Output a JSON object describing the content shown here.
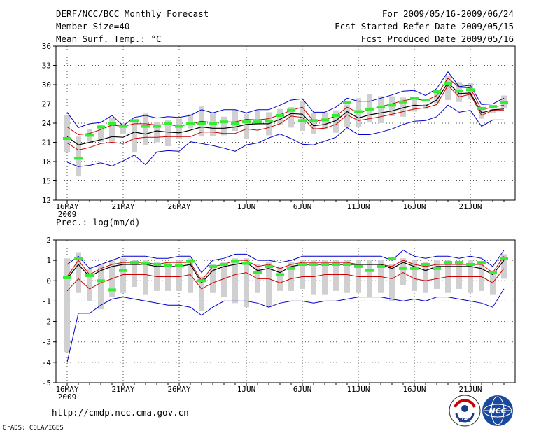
{
  "header": {
    "title": "DERF/NCC/BCC Monthly Forecast",
    "member_size": "Member Size=40",
    "var1": "Mean Surf. Temp.: °C",
    "period": "For 2009/05/16-2009/06/24",
    "started": "Fcst Started Refer Date 2009/05/15",
    "produced": "Fcst Produced Date 2009/05/16"
  },
  "panel2_label": "Prec.: log(mm/d)",
  "footer": {
    "url": "http://cmdp.ncc.cma.gov.cn",
    "grads": "GrADS: COLA/IGES",
    "logo1": "BCC",
    "logo2": "NCC"
  },
  "x_labels": [
    {
      "day": 0,
      "label": "16MAY",
      "sub": "2009"
    },
    {
      "day": 5,
      "label": "21MAY"
    },
    {
      "day": 10,
      "label": "26MAY"
    },
    {
      "day": 16,
      "label": "1JUN"
    },
    {
      "day": 21,
      "label": "6JUN"
    },
    {
      "day": 26,
      "label": "11JUN"
    },
    {
      "day": 31,
      "label": "16JUN"
    },
    {
      "day": 36,
      "label": "21JUN"
    }
  ],
  "colors": {
    "max_min": "#0000cc",
    "spread": "#cc0000",
    "mean": "#000000",
    "box": "#d0d0d0",
    "obs": "#33ee33",
    "grid": "#555555"
  },
  "chart_data": [
    {
      "type": "line",
      "title": "Mean Surf. Temp.: °C",
      "x": [
        0,
        1,
        2,
        3,
        4,
        5,
        6,
        7,
        8,
        9,
        10,
        11,
        12,
        13,
        14,
        15,
        16,
        17,
        18,
        19,
        20,
        21,
        22,
        23,
        24,
        25,
        26,
        27,
        28,
        29,
        30,
        31,
        32,
        33,
        34,
        35,
        36,
        37,
        38,
        39
      ],
      "ylim": [
        12,
        36
      ],
      "yticks": [
        12,
        15,
        18,
        21,
        24,
        27,
        30,
        33,
        36
      ],
      "series": [
        {
          "name": "max",
          "values": [
            25.7,
            23.3,
            23.9,
            24.1,
            25.2,
            23.6,
            24.9,
            25.2,
            24.8,
            25.0,
            24.9,
            25.2,
            26.1,
            25.6,
            26.1,
            26.1,
            25.6,
            26.1,
            26.1,
            26.8,
            27.6,
            27.8,
            25.7,
            25.7,
            26.5,
            27.9,
            27.4,
            27.4,
            27.9,
            28.4,
            29.0,
            29.1,
            28.3,
            29.4,
            32.0,
            29.7,
            29.9,
            26.9,
            27.0,
            27.9
          ]
        },
        {
          "name": "upper",
          "values": [
            23.4,
            22.2,
            22.4,
            23.0,
            23.7,
            23.5,
            23.9,
            23.9,
            23.7,
            23.8,
            23.5,
            23.9,
            24.3,
            24.1,
            24.2,
            24.2,
            24.6,
            24.5,
            24.7,
            25.3,
            26.0,
            26.5,
            24.3,
            24.5,
            25.1,
            26.5,
            25.6,
            26.1,
            26.6,
            27.0,
            27.5,
            27.8,
            27.5,
            28.3,
            31.0,
            29.6,
            29.5,
            26.1,
            26.5,
            26.8
          ]
        },
        {
          "name": "mean",
          "values": [
            21.9,
            20.6,
            21.0,
            21.4,
            21.9,
            21.8,
            22.6,
            22.3,
            22.8,
            22.6,
            22.5,
            22.9,
            23.4,
            23.2,
            23.2,
            23.4,
            23.8,
            23.9,
            23.9,
            24.6,
            25.5,
            25.4,
            23.6,
            23.8,
            24.4,
            25.8,
            24.8,
            25.3,
            25.6,
            25.9,
            26.4,
            26.8,
            26.7,
            27.6,
            30.3,
            28.6,
            28.7,
            25.6,
            26.1,
            26.2
          ]
        },
        {
          "name": "lower",
          "values": [
            20.9,
            19.8,
            20.2,
            20.8,
            21.0,
            20.8,
            21.6,
            21.8,
            21.8,
            21.9,
            21.9,
            21.9,
            22.6,
            22.6,
            22.4,
            22.4,
            23.1,
            22.9,
            23.3,
            23.9,
            25.1,
            24.9,
            23.1,
            23.2,
            23.8,
            25.3,
            24.4,
            24.7,
            25.0,
            25.4,
            25.8,
            26.2,
            26.4,
            26.9,
            29.9,
            28.1,
            28.5,
            25.2,
            26.0,
            26.0
          ]
        },
        {
          "name": "min",
          "values": [
            17.9,
            17.2,
            17.4,
            17.8,
            17.3,
            18.1,
            19.0,
            17.5,
            19.5,
            19.7,
            19.6,
            21.1,
            20.8,
            20.5,
            20.1,
            19.6,
            20.6,
            20.9,
            21.7,
            22.3,
            21.6,
            20.7,
            20.6,
            21.2,
            21.8,
            23.3,
            22.2,
            22.2,
            22.6,
            23.1,
            23.8,
            24.3,
            24.4,
            25.0,
            26.8,
            25.7,
            26.0,
            23.5,
            24.5,
            24.5
          ]
        },
        {
          "name": "box_top",
          "values": [
            25.2,
            21.9,
            23.1,
            23.7,
            24.8,
            24.0,
            24.5,
            25.5,
            24.2,
            24.5,
            24.7,
            25.4,
            26.6,
            25.5,
            25.0,
            26.1,
            25.4,
            26.0,
            25.7,
            26.2,
            26.5,
            27.4,
            25.6,
            25.7,
            26.0,
            26.9,
            27.9,
            28.5,
            28.2,
            28.2,
            28.0,
            27.9,
            27.0,
            29.2,
            31.4,
            30.4,
            30.3,
            26.1,
            26.2,
            28.3
          ]
        },
        {
          "name": "box_bottom",
          "values": [
            19.4,
            15.8,
            21.1,
            21.1,
            21.0,
            22.3,
            19.4,
            20.6,
            21.0,
            20.4,
            21.5,
            23.2,
            22.0,
            22.0,
            22.1,
            22.8,
            21.5,
            23.8,
            22.1,
            23.8,
            23.3,
            22.8,
            22.3,
            23.0,
            22.5,
            23.4,
            23.4,
            24.1,
            24.0,
            25.1,
            25.0,
            25.8,
            26.2,
            27.1,
            27.6,
            27.3,
            27.7,
            24.7,
            25.6,
            26.3
          ]
        },
        {
          "name": "observed",
          "values": [
            21.6,
            18.5,
            22.1,
            23.4,
            24.0,
            23.5,
            24.4,
            23.5,
            23.5,
            24.0,
            23.5,
            24.0,
            24.0,
            24.0,
            24.2,
            24.0,
            24.2,
            24.2,
            24.3,
            25.2,
            26.0,
            24.4,
            24.4,
            24.5,
            25.2,
            27.2,
            25.8,
            26.2,
            26.5,
            26.8,
            27.3,
            27.9,
            27.6,
            28.9,
            30.2,
            29.0,
            29.2,
            26.3,
            26.6,
            27.2
          ]
        }
      ]
    },
    {
      "type": "line",
      "title": "Prec.: log(mm/d)",
      "x": [
        0,
        1,
        2,
        3,
        4,
        5,
        6,
        7,
        8,
        9,
        10,
        11,
        12,
        13,
        14,
        15,
        16,
        17,
        18,
        19,
        20,
        21,
        22,
        23,
        24,
        25,
        26,
        27,
        28,
        29,
        30,
        31,
        32,
        33,
        34,
        35,
        36,
        37,
        38,
        39
      ],
      "ylim": [
        -5,
        2
      ],
      "yticks": [
        -5,
        -4,
        -3,
        -2,
        -1,
        0,
        1,
        2
      ],
      "series": [
        {
          "name": "max",
          "values": [
            0.8,
            1.2,
            0.6,
            0.8,
            1.0,
            1.2,
            1.2,
            1.2,
            1.1,
            1.1,
            1.2,
            1.2,
            0.4,
            1.0,
            1.1,
            1.3,
            1.3,
            1.0,
            1.0,
            0.9,
            1.0,
            1.2,
            1.2,
            1.2,
            1.2,
            1.2,
            1.2,
            1.2,
            1.2,
            1.0,
            1.5,
            1.2,
            1.1,
            1.2,
            1.2,
            1.1,
            1.2,
            1.1,
            0.7,
            1.5
          ]
        },
        {
          "name": "upper",
          "values": [
            0.2,
            1.0,
            0.3,
            0.6,
            0.8,
            0.9,
            0.9,
            0.9,
            0.8,
            0.9,
            0.9,
            0.9,
            0.0,
            0.7,
            0.8,
            1.0,
            1.0,
            0.7,
            0.8,
            0.6,
            0.8,
            0.9,
            0.9,
            0.9,
            0.9,
            0.9,
            0.8,
            0.8,
            0.8,
            0.7,
            1.0,
            0.8,
            0.7,
            0.8,
            0.8,
            0.8,
            0.8,
            0.8,
            0.4,
            1.2
          ]
        },
        {
          "name": "mean",
          "values": [
            0.1,
            0.8,
            0.2,
            0.5,
            0.7,
            0.8,
            0.8,
            0.8,
            0.7,
            0.7,
            0.7,
            0.8,
            -0.1,
            0.5,
            0.7,
            0.8,
            0.9,
            0.5,
            0.6,
            0.4,
            0.7,
            0.8,
            0.8,
            0.8,
            0.8,
            0.8,
            0.8,
            0.8,
            0.8,
            0.6,
            0.9,
            0.7,
            0.5,
            0.7,
            0.7,
            0.7,
            0.7,
            0.6,
            0.3,
            1.0
          ]
        },
        {
          "name": "lower",
          "values": [
            -0.5,
            0.1,
            -0.4,
            -0.1,
            0.1,
            0.3,
            0.3,
            0.3,
            0.2,
            0.2,
            0.2,
            0.3,
            -0.4,
            -0.1,
            0.1,
            0.3,
            0.4,
            0.1,
            0.1,
            -0.1,
            0.1,
            0.2,
            0.2,
            0.3,
            0.3,
            0.3,
            0.2,
            0.2,
            0.2,
            0.1,
            0.4,
            0.1,
            0.0,
            0.1,
            0.2,
            0.2,
            0.2,
            0.2,
            -0.1,
            0.6
          ]
        },
        {
          "name": "min",
          "values": [
            -4.0,
            -1.6,
            -1.6,
            -1.2,
            -0.9,
            -0.8,
            -0.9,
            -1.0,
            -1.1,
            -1.2,
            -1.2,
            -1.3,
            -1.7,
            -1.3,
            -1.0,
            -1.0,
            -1.0,
            -1.1,
            -1.3,
            -1.1,
            -1.0,
            -1.0,
            -1.1,
            -1.0,
            -1.0,
            -0.9,
            -0.8,
            -0.8,
            -0.8,
            -0.9,
            -1.0,
            -0.9,
            -1.0,
            -0.8,
            -0.8,
            -0.9,
            -1.0,
            -1.1,
            -1.3,
            -0.4
          ]
        },
        {
          "name": "box_top",
          "values": [
            1.1,
            1.4,
            0.6,
            0.8,
            1.0,
            1.1,
            1.0,
            1.0,
            0.9,
            0.9,
            1.0,
            1.1,
            0.2,
            0.8,
            0.9,
            1.1,
            1.1,
            0.8,
            0.9,
            0.7,
            0.9,
            1.0,
            1.0,
            1.0,
            1.0,
            1.0,
            1.0,
            1.0,
            1.0,
            0.8,
            1.1,
            1.0,
            0.9,
            1.0,
            1.0,
            0.9,
            1.0,
            0.9,
            0.5,
            1.3
          ]
        },
        {
          "name": "box_bottom",
          "values": [
            -3.5,
            -0.6,
            -1.0,
            -1.4,
            -0.8,
            -0.6,
            -0.3,
            -0.7,
            -0.5,
            -0.5,
            -0.5,
            -0.6,
            -1.5,
            -0.6,
            -0.8,
            -1.1,
            -1.3,
            -0.6,
            -1.3,
            -0.5,
            -0.5,
            -0.4,
            -0.7,
            -0.7,
            -0.5,
            -0.6,
            -0.6,
            -0.8,
            -0.6,
            -1.0,
            -0.2,
            -0.5,
            -0.6,
            -0.4,
            -0.6,
            -0.4,
            -0.6,
            -0.5,
            -0.7,
            0.1
          ]
        },
        {
          "name": "observed",
          "values": [
            0.15,
            1.1,
            0.25,
            0.0,
            -0.45,
            0.5,
            0.9,
            0.85,
            0.8,
            0.75,
            0.75,
            0.95,
            0.0,
            0.7,
            0.8,
            0.95,
            0.85,
            0.4,
            0.7,
            0.3,
            0.6,
            0.8,
            0.8,
            0.8,
            0.8,
            0.8,
            0.7,
            0.5,
            0.7,
            1.1,
            0.6,
            0.6,
            0.8,
            0.6,
            0.9,
            0.9,
            0.8,
            0.9,
            0.4,
            1.1
          ]
        }
      ]
    }
  ]
}
